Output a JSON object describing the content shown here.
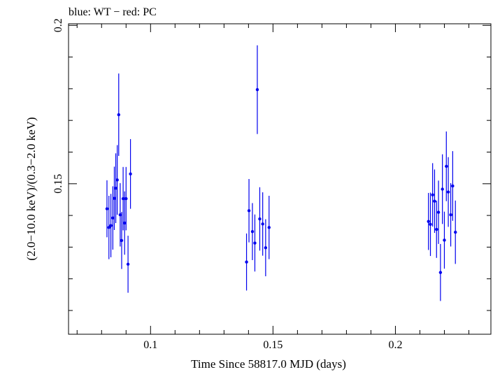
{
  "chart_data": {
    "type": "scatter",
    "title": "blue: WT − red: PC",
    "xlabel": "Time Since 58817.0 MJD (days)",
    "ylabel": "(2.0−10.0 keV)/(0.3−2.0 keV)",
    "xlim": [
      0.0665,
      0.239
    ],
    "ylim": [
      0.1025,
      0.2005
    ],
    "x_ticks": [
      0.1,
      0.15,
      0.2
    ],
    "x_tick_labels": [
      "0.1",
      "0.15",
      "0.2"
    ],
    "y_ticks": [
      0.15,
      0.2
    ],
    "y_tick_labels": [
      "0.15",
      "0.2"
    ],
    "grid": false,
    "series": [
      {
        "color": "#0000ee",
        "points": [
          {
            "x": 0.0822,
            "y": 0.1421,
            "err": 0.009
          },
          {
            "x": 0.083,
            "y": 0.1362,
            "err": 0.01
          },
          {
            "x": 0.0838,
            "y": 0.1368,
            "err": 0.01
          },
          {
            "x": 0.0846,
            "y": 0.1392,
            "err": 0.01
          },
          {
            "x": 0.0852,
            "y": 0.1454,
            "err": 0.01
          },
          {
            "x": 0.0858,
            "y": 0.1486,
            "err": 0.011
          },
          {
            "x": 0.0864,
            "y": 0.1512,
            "err": 0.011
          },
          {
            "x": 0.087,
            "y": 0.1718,
            "err": 0.013
          },
          {
            "x": 0.0876,
            "y": 0.1402,
            "err": 0.01
          },
          {
            "x": 0.0882,
            "y": 0.1321,
            "err": 0.009
          },
          {
            "x": 0.0888,
            "y": 0.1453,
            "err": 0.01
          },
          {
            "x": 0.0894,
            "y": 0.1376,
            "err": 0.01
          },
          {
            "x": 0.09,
            "y": 0.1453,
            "err": 0.01
          },
          {
            "x": 0.0908,
            "y": 0.1246,
            "err": 0.009
          },
          {
            "x": 0.0918,
            "y": 0.1531,
            "err": 0.011
          },
          {
            "x": 0.1392,
            "y": 0.1253,
            "err": 0.009
          },
          {
            "x": 0.1402,
            "y": 0.1415,
            "err": 0.01
          },
          {
            "x": 0.1416,
            "y": 0.1349,
            "err": 0.009
          },
          {
            "x": 0.1426,
            "y": 0.1313,
            "err": 0.009
          },
          {
            "x": 0.1436,
            "y": 0.1797,
            "err": 0.014
          },
          {
            "x": 0.1446,
            "y": 0.1389,
            "err": 0.01
          },
          {
            "x": 0.1458,
            "y": 0.1373,
            "err": 0.01
          },
          {
            "x": 0.147,
            "y": 0.1298,
            "err": 0.009
          },
          {
            "x": 0.1484,
            "y": 0.1362,
            "err": 0.01
          },
          {
            "x": 0.2135,
            "y": 0.1381,
            "err": 0.009
          },
          {
            "x": 0.2143,
            "y": 0.1372,
            "err": 0.01
          },
          {
            "x": 0.2152,
            "y": 0.1465,
            "err": 0.01
          },
          {
            "x": 0.216,
            "y": 0.1445,
            "err": 0.01
          },
          {
            "x": 0.2168,
            "y": 0.1356,
            "err": 0.009
          },
          {
            "x": 0.2176,
            "y": 0.141,
            "err": 0.01
          },
          {
            "x": 0.2184,
            "y": 0.122,
            "err": 0.009
          },
          {
            "x": 0.2192,
            "y": 0.1483,
            "err": 0.011
          },
          {
            "x": 0.22,
            "y": 0.1322,
            "err": 0.009
          },
          {
            "x": 0.2208,
            "y": 0.1555,
            "err": 0.011
          },
          {
            "x": 0.2216,
            "y": 0.1474,
            "err": 0.011
          },
          {
            "x": 0.2226,
            "y": 0.1402,
            "err": 0.01
          },
          {
            "x": 0.2234,
            "y": 0.1493,
            "err": 0.011
          },
          {
            "x": 0.2245,
            "y": 0.1347,
            "err": 0.01
          }
        ]
      }
    ]
  }
}
